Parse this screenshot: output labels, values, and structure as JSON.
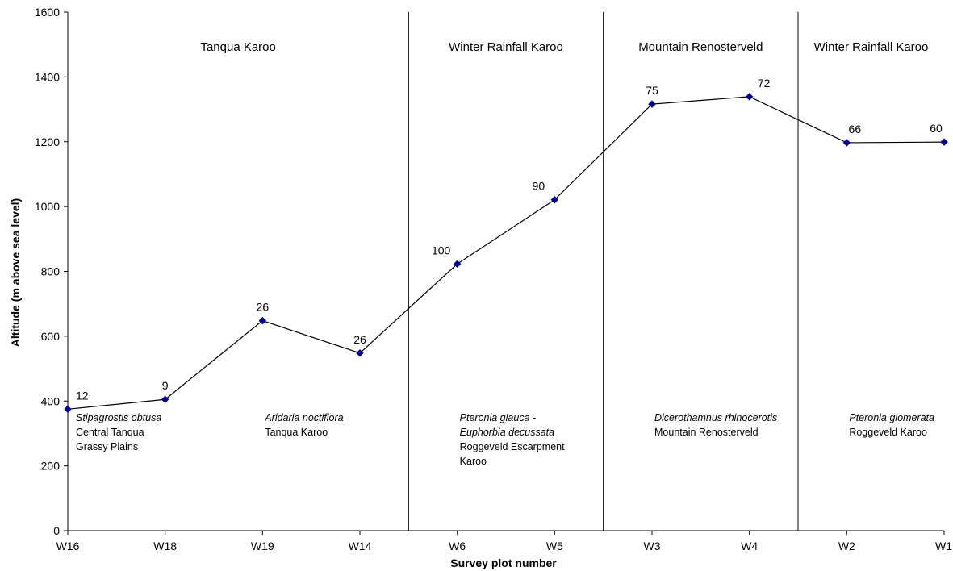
{
  "chart_data": {
    "type": "line",
    "title": "",
    "xlabel": "Survey plot number",
    "ylabel": "Altitude (m above sea level)",
    "ylim": [
      0,
      1600
    ],
    "yticks": [
      "0",
      "200",
      "400",
      "600",
      "800",
      "1000",
      "1200",
      "1400",
      "1600"
    ],
    "categories": [
      "W16",
      "W18",
      "W19",
      "W14",
      "W6",
      "W5",
      "W3",
      "W4",
      "W2",
      "W1"
    ],
    "series": [
      {
        "values": [
          375,
          405,
          648,
          548,
          823,
          1021,
          1316,
          1339,
          1197,
          1199
        ],
        "point_labels": [
          "12",
          "9",
          "26",
          "26",
          "100",
          "90",
          "75",
          "72",
          "66",
          "60"
        ],
        "color": "#000000",
        "marker_color": "#00008b"
      }
    ],
    "grid": false,
    "legend": "none",
    "region_dividers_after_category": [
      "W14",
      "W5",
      "W4"
    ],
    "regions": [
      {
        "label": "Tanqua Karoo"
      },
      {
        "label": "Winter Rainfall Karoo"
      },
      {
        "label": "Mountain Renosterveld"
      },
      {
        "label": "Winter Rainfall Karoo"
      }
    ],
    "vegetation_labels": [
      {
        "lines": [
          {
            "text": "Stipagrostis obtusa",
            "italic": true
          },
          {
            "text": "Central Tanqua",
            "italic": false
          },
          {
            "text": "Grassy Plains",
            "italic": false
          }
        ]
      },
      {
        "lines": [
          {
            "text": "Aridaria noctiflora",
            "italic": true
          },
          {
            "text": "Tanqua Karoo",
            "italic": false
          }
        ]
      },
      {
        "lines": [
          {
            "text": "Pteronia glauca -",
            "italic": true
          },
          {
            "text": "Euphorbia decussata",
            "italic": true
          },
          {
            "text": "Roggeveld Escarpment",
            "italic": false
          },
          {
            "text": "Karoo",
            "italic": false
          }
        ]
      },
      {
        "lines": [
          {
            "text": "Dicerothamnus rhinocerotis",
            "italic": true
          },
          {
            "text": "Mountain Renosterveld",
            "italic": false
          }
        ]
      },
      {
        "lines": [
          {
            "text": "Pteronia glomerata",
            "italic": true
          },
          {
            "text": "Roggeveld Karoo",
            "italic": false
          }
        ]
      }
    ]
  }
}
